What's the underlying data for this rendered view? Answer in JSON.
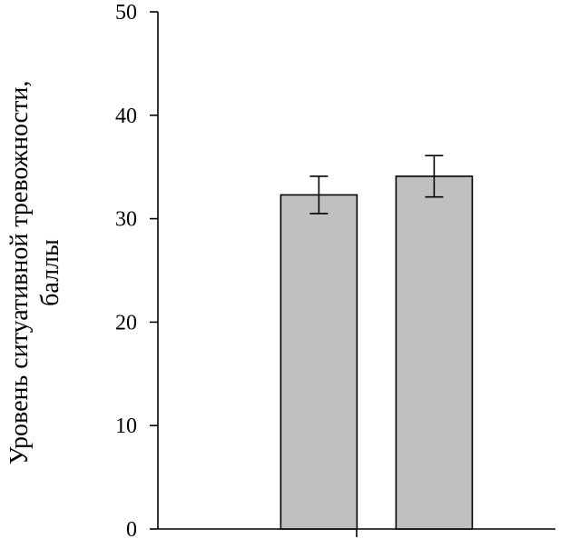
{
  "chart_data": {
    "type": "bar",
    "title": "",
    "xlabel": "",
    "ylabel_lines": [
      "Уровень ситуативной тревожности,",
      "баллы"
    ],
    "categories": [
      "",
      ""
    ],
    "series": [
      {
        "values": [
          32.3,
          34.1
        ],
        "error": [
          1.8,
          2.0
        ]
      }
    ],
    "ylim": [
      0,
      50
    ],
    "yticks": [
      0,
      10,
      20,
      30,
      40,
      50
    ],
    "grid": false,
    "legend": "none",
    "bar_color": "#c0c0c0",
    "bar_edge_color": "#000000"
  }
}
